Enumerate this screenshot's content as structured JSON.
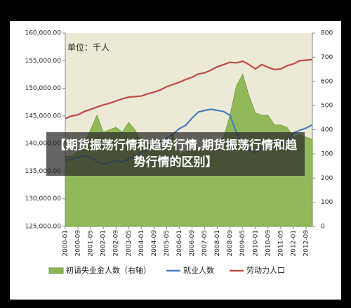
{
  "chart_data": {
    "type": "combo",
    "annotation": "单位：千人",
    "categories": [
      "2000-01",
      null,
      "2000-09",
      null,
      "2001-05",
      null,
      "2002-01",
      null,
      "2002-09",
      null,
      "2003-05",
      null,
      "2004-01",
      null,
      "2004-09",
      null,
      "2005-05",
      null,
      "2006-01",
      null,
      "2006-09",
      null,
      "2007-05",
      null,
      "2008-01",
      null,
      "2008-09",
      null,
      "2009-05",
      null,
      "2010-01",
      null,
      "2010-09",
      null,
      "2011-05",
      null,
      "2012-01",
      null,
      "2012-09",
      null
    ],
    "series": [
      {
        "name": "初请失业金人数（右轴）",
        "type": "area",
        "axis": "y2",
        "color": "#8db552",
        "values": [
          290,
          290,
          310,
          340,
          400,
          460,
          390,
          400,
          410,
          390,
          430,
          400,
          350,
          340,
          340,
          330,
          330,
          380,
          300,
          310,
          310,
          320,
          310,
          320,
          340,
          370,
          460,
          580,
          630,
          540,
          470,
          460,
          460,
          420,
          420,
          410,
          370,
          380,
          370,
          360
        ]
      },
      {
        "name": "就业人数",
        "type": "line",
        "color": "#4a7ebb",
        "values": [
          136900,
          137200,
          137500,
          137800,
          137400,
          136800,
          136300,
          136500,
          136900,
          136600,
          137300,
          137600,
          138400,
          139000,
          139700,
          140300,
          141000,
          141700,
          142700,
          143300,
          144600,
          145700,
          146000,
          146200,
          146000,
          145800,
          145100,
          142000,
          139800,
          138800,
          138300,
          139300,
          139200,
          139200,
          139800,
          140100,
          141900,
          142400,
          142800,
          143400
        ]
      },
      {
        "name": "劳动力人口",
        "type": "line",
        "color": "#be4b48",
        "values": [
          144500,
          145000,
          145200,
          145800,
          146200,
          146600,
          147000,
          147300,
          147700,
          148100,
          148400,
          148500,
          148600,
          149000,
          149300,
          149700,
          150300,
          150700,
          151100,
          151600,
          152000,
          152600,
          152800,
          153300,
          153900,
          154300,
          154700,
          154600,
          154900,
          154300,
          153500,
          154300,
          153800,
          153400,
          153500,
          154100,
          154400,
          155000,
          155100,
          155200
        ]
      }
    ],
    "ylim": [
      125000,
      160000
    ],
    "yticks": [
      {
        "value": 125000,
        "label": "125,000.00"
      },
      {
        "value": 130000,
        "label": "130,000.00"
      },
      {
        "value": 135000,
        "label": "135,000.00"
      },
      {
        "value": 140000,
        "label": "140,000.00"
      },
      {
        "value": 145000,
        "label": "145,000.00"
      },
      {
        "value": 150000,
        "label": "150,000.00"
      },
      {
        "value": 155000,
        "label": "155,000.00"
      },
      {
        "value": 160000,
        "label": "160,000.00"
      }
    ],
    "y2lim": [
      0,
      800
    ],
    "y2ticks": [
      0,
      100,
      200,
      300,
      400,
      500,
      600,
      700,
      800
    ],
    "grid": false,
    "legend": "bottom"
  },
  "banner_title": "【期货振荡行情和趋势行情,期货振荡行情和趋势行情的区别】"
}
